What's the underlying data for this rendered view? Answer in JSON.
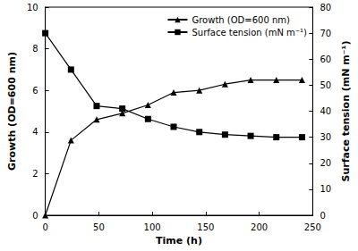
{
  "chart_data": {
    "type": "line",
    "x_label": "Time (h)",
    "y_label": "Growth (OD=600 nm)",
    "y2_label": "Surface tension (mN m⁻¹)",
    "x": [
      0,
      24,
      48,
      72,
      96,
      120,
      144,
      168,
      192,
      216,
      240
    ],
    "series": [
      {
        "name": "Growth (OD=600 nm)",
        "color": "#000000",
        "marker": "triangle",
        "line_style": "solid",
        "values": [
          0,
          3.6,
          4.6,
          4.9,
          5.3,
          5.9,
          6.0,
          6.3,
          6.5,
          6.5,
          6.5
        ]
      },
      {
        "name": "Surface tension (mN m⁻¹)",
        "color": "#000000",
        "marker": "square",
        "line_style": "solid",
        "axis": "y2",
        "values": [
          70,
          56,
          42,
          41,
          37,
          34,
          32,
          31,
          30.5,
          30,
          30
        ]
      }
    ],
    "xlim": [
      0,
      250
    ],
    "xticks": [
      0,
      50,
      100,
      150,
      200,
      250
    ],
    "ylim": [
      0,
      10
    ],
    "yticks": [
      0,
      2,
      4,
      6,
      8,
      10
    ],
    "y2lim": [
      0,
      80
    ],
    "y2ticks": [
      0,
      10,
      20,
      30,
      40,
      50,
      60,
      70,
      80
    ],
    "grid": false,
    "legend": "upper right"
  }
}
